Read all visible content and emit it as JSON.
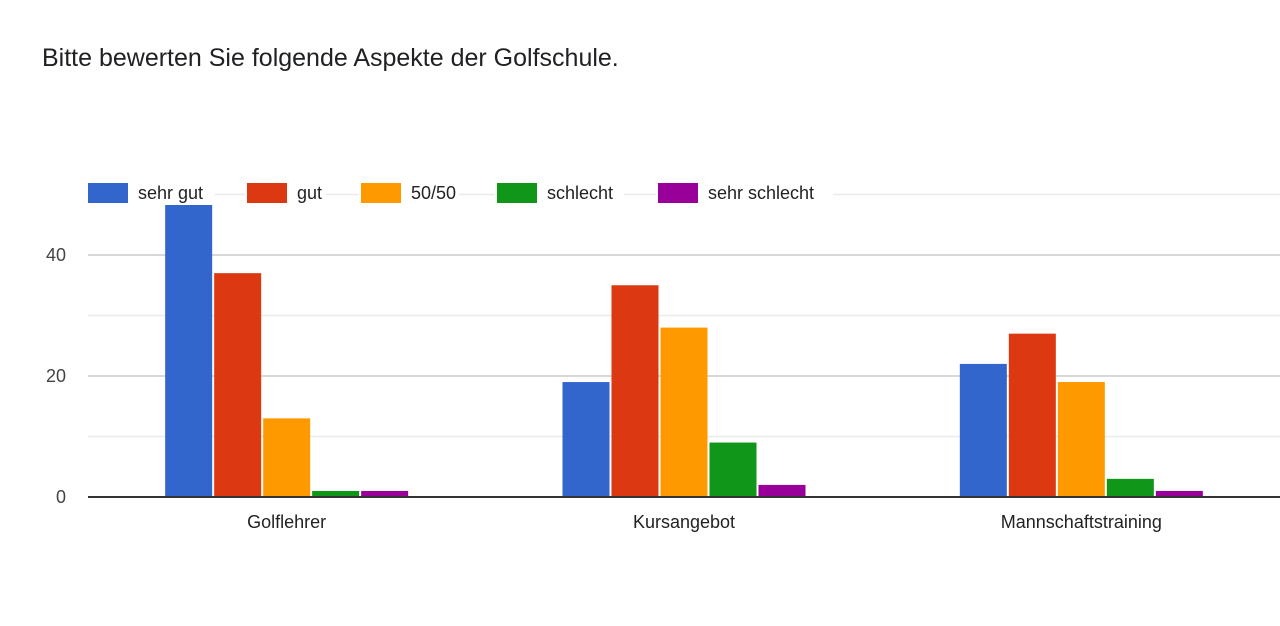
{
  "title": "Bitte bewerten Sie folgende Aspekte der Golfschule.",
  "chart_data": {
    "type": "bar",
    "title": "Bitte bewerten Sie folgende Aspekte der Golfschule.",
    "xlabel": "",
    "ylabel": "",
    "categories": [
      "Golflehrer",
      "Kursangebot",
      "Mannschaftstraining"
    ],
    "series": [
      {
        "name": "sehr gut",
        "color": "#3366cc",
        "values": [
          49,
          19,
          22
        ]
      },
      {
        "name": "gut",
        "color": "#dc3912",
        "values": [
          37,
          35,
          27
        ]
      },
      {
        "name": "50/50",
        "color": "#ff9900",
        "values": [
          13,
          28,
          19
        ]
      },
      {
        "name": "schlecht",
        "color": "#109618",
        "values": [
          1,
          9,
          3
        ]
      },
      {
        "name": "sehr schlecht",
        "color": "#990099",
        "values": [
          1,
          2,
          1
        ]
      }
    ],
    "yticks": [
      "0",
      "20",
      "40"
    ],
    "ylim": [
      0,
      50
    ],
    "grid": true,
    "legend": "top-left"
  }
}
